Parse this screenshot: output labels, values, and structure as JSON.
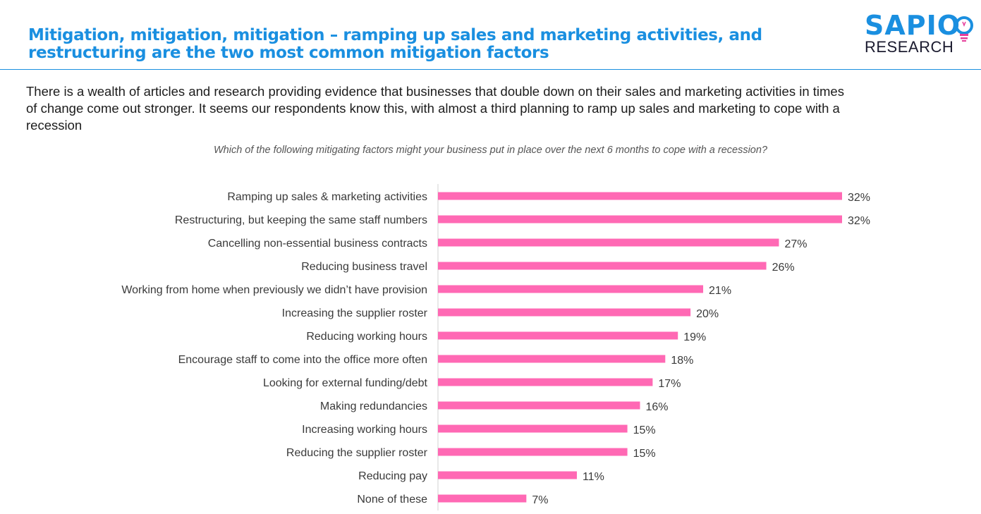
{
  "header": {
    "title_line1": "Mitigation, mitigation, mitigation – ramping up sales and marketing activities, and",
    "title_line2": "restructuring are the two most common mitigation factors",
    "logo_main": "SAPIO",
    "logo_sub": "RESEARCH"
  },
  "intro": {
    "line1": "There is a wealth of articles and research providing evidence that businesses that double down on their sales and marketing activities in times",
    "line2": "of change come out stronger.  It seems our respondents know this, with almost a third planning to ramp up sales and marketing to cope with a",
    "line3": "recession"
  },
  "colors": {
    "accent": "#1a8fe0",
    "bar": "#ff69b4",
    "bulb": "#e63e9a"
  },
  "chart_data": {
    "type": "bar",
    "orientation": "horizontal",
    "title": "Which of the following mitigating factors might your business put in place over the next 6 months to cope with a recession?",
    "categories": [
      "Ramping up sales & marketing activities",
      "Restructuring, but keeping the same staff numbers",
      "Cancelling non-essential business contracts",
      "Reducing business travel ",
      "Working from home when previously we didn’t have provision",
      "Increasing the supplier roster",
      "Reducing working hours",
      "Encourage staff to come into the office more often",
      "Looking for external funding/debt ",
      "Making redundancies",
      "Increasing working hours",
      "Reducing the supplier roster",
      "Reducing pay",
      "None of these"
    ],
    "values": [
      32,
      32,
      27,
      26,
      21,
      20,
      19,
      18,
      17,
      16,
      15,
      15,
      11,
      7
    ],
    "value_labels": [
      "32%",
      "32%",
      "27%",
      "26%",
      "21%",
      "20%",
      "19%",
      "18%",
      "17%",
      "16%",
      "15%",
      "15%",
      "11%",
      "7%"
    ],
    "unit": "%",
    "xlim": [
      0,
      32
    ],
    "grid": false,
    "legend": "none"
  }
}
